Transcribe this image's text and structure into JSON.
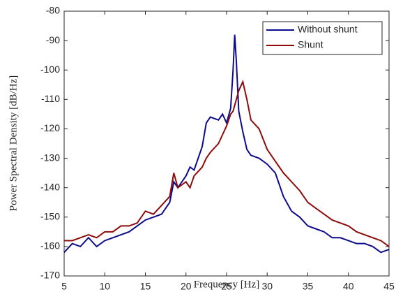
{
  "chart_data": {
    "type": "line",
    "xlabel": "Frequency [Hz]",
    "ylabel": "Power Spectral Density [dB/Hz]",
    "x": [
      5,
      6,
      7,
      8,
      9,
      10,
      11,
      12,
      13,
      14,
      15,
      16,
      17,
      18,
      18.5,
      19,
      20,
      20.5,
      21,
      22,
      22.5,
      23,
      24,
      24.5,
      25,
      25.5,
      25.8,
      26,
      26.2,
      26.5,
      27,
      27.5,
      28,
      29,
      30,
      31,
      32,
      33,
      34,
      35,
      36,
      37,
      38,
      39,
      40,
      41,
      42,
      43,
      44,
      45
    ],
    "series": [
      {
        "name": "Without shunt",
        "color": "#0b0b8c",
        "values": [
          -162,
          -159,
          -160,
          -157,
          -160,
          -158,
          -157,
          -156,
          -155,
          -153,
          -151,
          -150,
          -149,
          -145,
          -138,
          -140,
          -136,
          -133,
          -134,
          -126,
          -118,
          -116,
          -117,
          -115,
          -118,
          -113,
          -100,
          -88,
          -97,
          -114,
          -121,
          -127,
          -129,
          -130,
          -132,
          -135,
          -143,
          -148,
          -150,
          -153,
          -154,
          -155,
          -157,
          -157,
          -158,
          -159,
          -159,
          -160,
          -162,
          -161
        ]
      },
      {
        "name": "Shunt",
        "color": "#8c0b0b",
        "values": [
          -158,
          -158,
          -157,
          -156,
          -157,
          -155,
          -155,
          -153,
          -153,
          -152,
          -148,
          -149,
          -146,
          -143,
          -135,
          -140,
          -138,
          -140,
          -136,
          -133,
          -130,
          -128,
          -125,
          -122,
          -119,
          -115,
          -114,
          -112,
          -110,
          -107,
          -104,
          -110,
          -117,
          -120,
          -127,
          -131,
          -135,
          -138,
          -141,
          -145,
          -147,
          -149,
          -151,
          -152,
          -153,
          -155,
          -156,
          -157,
          -158,
          -160
        ]
      }
    ],
    "xlim": [
      5,
      45
    ],
    "xticks": [
      5,
      10,
      15,
      20,
      25,
      30,
      35,
      40,
      45
    ],
    "ylim": [
      -170,
      -80
    ],
    "yticks": [
      -170,
      -160,
      -150,
      -140,
      -130,
      -120,
      -110,
      -100,
      -90,
      -80
    ],
    "grid": false,
    "legend": "upper right"
  }
}
